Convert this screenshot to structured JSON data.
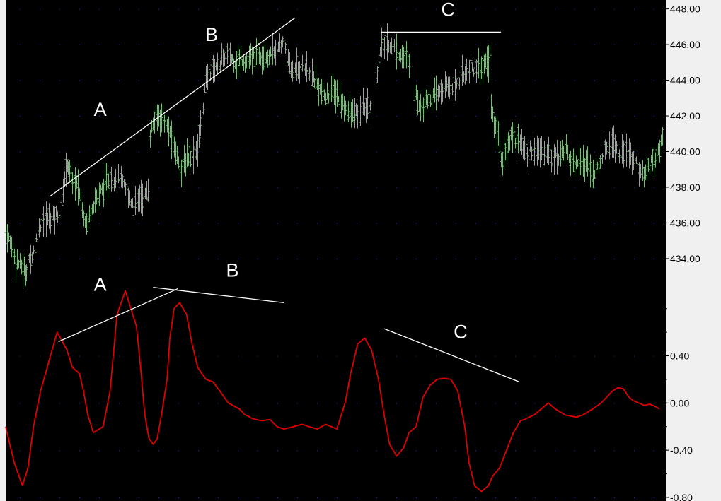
{
  "colors": {
    "background": "#000000",
    "axis_panel": "#f0f0f0",
    "price_bars": "#7fb37f",
    "oscillator": "#e00000",
    "trendlines": "#ffffff",
    "grid_dots": "#1e3a8a"
  },
  "chart_data": [
    {
      "type": "ohlc",
      "title": "",
      "xlabel": "",
      "ylabel": "",
      "ylim": [
        431.5,
        448.5
      ],
      "yticks": [
        "434.00",
        "436.00",
        "438.00",
        "440.00",
        "442.00",
        "444.00",
        "446.00",
        "448.00"
      ],
      "grid": "dotted",
      "bar_color": "#7fb37f",
      "segments": [
        {
          "x": [
            0,
            7,
            14,
            20,
            26,
            30,
            36,
            38
          ],
          "y": [
            435.5,
            434.0,
            433.2,
            434.5,
            436.2,
            436.2,
            436.5,
            436.5
          ]
        },
        {
          "x": [
            40,
            42,
            44,
            47,
            52,
            56,
            58,
            62,
            66,
            70,
            74,
            78,
            82,
            85,
            88,
            92,
            96,
            99,
            102
          ],
          "y": [
            437.0,
            438.5,
            439.5,
            438.5,
            438.0,
            436.5,
            436.0,
            437.0,
            437.5,
            438.0,
            438.5,
            438.5,
            438.5,
            438.0,
            437.5,
            437.0,
            437.5,
            437.5,
            437.8
          ]
        },
        {
          "x": [
            104,
            106,
            108,
            110,
            113,
            115,
            118,
            122,
            126,
            129,
            132,
            135,
            138,
            141,
            144,
            147,
            151,
            154,
            157,
            160,
            163,
            166,
            170,
            174,
            178,
            182,
            186,
            190,
            194,
            198,
            200,
            201
          ],
          "y": [
            441.0,
            441.5,
            442.0,
            442.0,
            442.0,
            441.5,
            441.0,
            440.0,
            439.0,
            439.5,
            439.8,
            440.0,
            440.2,
            442.0,
            444.0,
            444.5,
            444.8,
            445.0,
            445.3,
            445.5,
            445.2,
            445.0,
            445.2,
            445.0,
            445.3,
            445.5,
            445.5,
            445.3,
            445.6,
            446.0,
            446.5,
            446.0
          ]
        },
        {
          "x": [
            202,
            206,
            210,
            214,
            218,
            222,
            226,
            230,
            234,
            238,
            242,
            246,
            250,
            254,
            258,
            262
          ],
          "y": [
            445.0,
            444.5,
            444.6,
            444.8,
            444.3,
            444.0,
            443.5,
            443.0,
            443.4,
            443.2,
            442.6,
            442.3,
            442.0,
            442.2,
            442.5,
            442.6
          ]
        },
        {
          "x": [
            266,
            268,
            270,
            274,
            278,
            282,
            286,
            290
          ],
          "y": [
            444.0,
            445.0,
            446.0,
            446.0,
            446.0,
            445.6,
            445.3,
            445.0
          ]
        },
        {
          "x": [
            294,
            296,
            298,
            302,
            306,
            310,
            314,
            318,
            322,
            326,
            330,
            334,
            338,
            342,
            346,
            348
          ],
          "y": [
            443.5,
            442.8,
            442.5,
            443.0,
            443.0,
            443.2,
            443.4,
            443.6,
            443.6,
            444.0,
            444.5,
            444.8,
            444.5,
            444.8,
            445.0,
            445.5
          ]
        },
        {
          "x": [
            349,
            351,
            354,
            356,
            359,
            362,
            364,
            366,
            370,
            374,
            378,
            382,
            386,
            390,
            392,
            394,
            397,
            400,
            403,
            406,
            410,
            414,
            418,
            422,
            426,
            428,
            431,
            434,
            437,
            440,
            443,
            446,
            449,
            452,
            455,
            458,
            461,
            464,
            467,
            470,
            472
          ],
          "y": [
            442.5,
            441.5,
            441.0,
            439.5,
            440.0,
            440.5,
            441.0,
            440.8,
            440.6,
            439.8,
            440.2,
            440.0,
            440.0,
            440.0,
            439.5,
            440.0,
            439.5,
            440.0,
            440.2,
            439.6,
            439.5,
            439.5,
            439.2,
            438.8,
            439.0,
            439.8,
            440.0,
            440.5,
            440.5,
            440.0,
            439.8,
            440.0,
            439.8,
            439.5,
            439.0,
            438.8,
            439.0,
            439.5,
            439.7,
            440.0,
            441.0
          ]
        }
      ]
    },
    {
      "type": "line",
      "title": "",
      "xlabel": "",
      "ylabel": "",
      "ylim": [
        -0.83,
        0.9
      ],
      "yticks": [
        "0.40",
        "0.00",
        "-0.40",
        "-0.80"
      ],
      "series": [
        {
          "color": "#e00000",
          "x": [
            0,
            6,
            12,
            16,
            20,
            25,
            31,
            37,
            44,
            48,
            53,
            56,
            59,
            63,
            70,
            75,
            80,
            86,
            90,
            94,
            97,
            100,
            103,
            106,
            109,
            112,
            116,
            118,
            121,
            125,
            130,
            134,
            138,
            144,
            149,
            154,
            160,
            168,
            172,
            174,
            177,
            180,
            184,
            190,
            195,
            200,
            207,
            213,
            218,
            224,
            230,
            238,
            244,
            248,
            253,
            258,
            263,
            268,
            272,
            276,
            281,
            286,
            290,
            295,
            300,
            305,
            310,
            315,
            320,
            325,
            330,
            333,
            337,
            342,
            347,
            350,
            355,
            360,
            365,
            370,
            373,
            376,
            380,
            385,
            390,
            395,
            402,
            410,
            415,
            422,
            428,
            432,
            436,
            440,
            444,
            448,
            451,
            455,
            459,
            463,
            467,
            470
          ],
          "y": [
            -0.2,
            -0.5,
            -0.7,
            -0.55,
            -0.2,
            0.1,
            0.35,
            0.6,
            0.45,
            0.3,
            0.25,
            0.1,
            -0.1,
            -0.25,
            -0.2,
            0.1,
            0.75,
            0.95,
            0.8,
            0.65,
            0.3,
            -0.1,
            -0.3,
            -0.35,
            -0.3,
            -0.1,
            0.2,
            0.55,
            0.8,
            0.85,
            0.75,
            0.5,
            0.3,
            0.2,
            0.18,
            0.1,
            0.0,
            -0.05,
            -0.1,
            -0.11,
            -0.13,
            -0.14,
            -0.15,
            -0.14,
            -0.2,
            -0.22,
            -0.2,
            -0.18,
            -0.2,
            -0.22,
            -0.18,
            -0.22,
            0.0,
            0.25,
            0.5,
            0.55,
            0.45,
            0.2,
            -0.1,
            -0.35,
            -0.45,
            -0.38,
            -0.25,
            -0.2,
            0.05,
            0.15,
            0.2,
            0.21,
            0.2,
            0.1,
            -0.2,
            -0.5,
            -0.7,
            -0.75,
            -0.7,
            -0.62,
            -0.55,
            -0.4,
            -0.25,
            -0.15,
            -0.14,
            -0.12,
            -0.1,
            -0.05,
            0.0,
            -0.05,
            -0.1,
            -0.12,
            -0.1,
            -0.05,
            0.0,
            0.05,
            0.1,
            0.13,
            0.12,
            0.05,
            0.02,
            0.0,
            -0.02,
            -0.01,
            -0.03,
            -0.05
          ]
        }
      ]
    }
  ],
  "annotations": [
    {
      "label": "A",
      "panel": 0,
      "line": [
        [
          32,
          437.5
        ],
        [
          208,
          447.5
        ]
      ],
      "text_at": [
        68,
        442.0
      ]
    },
    {
      "label": "B",
      "panel": 0,
      "text_at": [
        148,
        446.2
      ]
    },
    {
      "label": "C",
      "panel": 0,
      "line": [
        [
          270,
          446.7
        ],
        [
          356,
          446.7
        ]
      ],
      "text_at": [
        318,
        447.6
      ]
    },
    {
      "label": "A",
      "panel": 1,
      "line": [
        [
          38,
          0.52
        ],
        [
          124,
          0.97
        ]
      ],
      "text_at": [
        68,
        0.95
      ]
    },
    {
      "label": "B",
      "panel": 1,
      "line": [
        [
          106,
          0.98
        ],
        [
          200,
          0.85
        ]
      ],
      "text_at": [
        163,
        1.07
      ]
    },
    {
      "label": "C",
      "panel": 1,
      "line": [
        [
          272,
          0.63
        ],
        [
          369,
          0.18
        ]
      ],
      "text_at": [
        327,
        0.55
      ]
    }
  ]
}
